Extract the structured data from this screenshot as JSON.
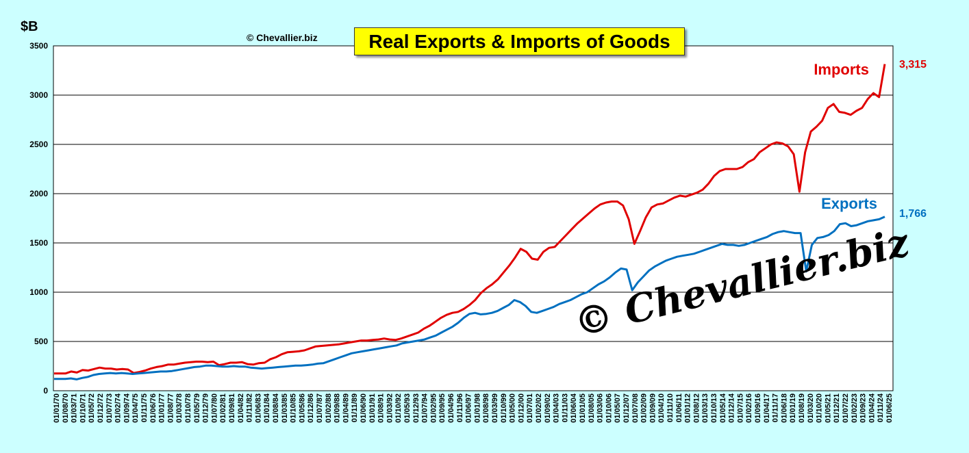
{
  "chart_data": {
    "type": "line",
    "title": "Real Exports & Imports of Goods",
    "copyright": "© Chevallier.biz",
    "watermark": "© Chevallier.biz",
    "ylabel": "$B",
    "ylim": [
      0,
      3500
    ],
    "yticks": [
      0,
      500,
      1000,
      1500,
      2000,
      2500,
      3000,
      3500
    ],
    "grid": true,
    "xtick_labels": [
      "01/01/70",
      "01/08/70",
      "01/03/71",
      "01/10/71",
      "01/05/72",
      "01/12/72",
      "01/07/73",
      "01/02/74",
      "01/09/74",
      "01/04/75",
      "01/11/75",
      "01/06/76",
      "01/01/77",
      "01/08/77",
      "01/03/78",
      "01/10/78",
      "01/05/79",
      "01/12/79",
      "01/07/80",
      "01/02/81",
      "01/09/81",
      "01/04/82",
      "01/11/82",
      "01/06/83",
      "01/01/84",
      "01/08/84",
      "01/03/85",
      "01/10/85",
      "01/05/86",
      "01/12/86",
      "01/07/87",
      "01/02/88",
      "01/09/88",
      "01/04/89",
      "01/11/89",
      "01/06/90",
      "01/01/91",
      "01/08/91",
      "01/03/92",
      "01/10/92",
      "01/05/93",
      "01/12/93",
      "01/07/94",
      "01/02/95",
      "01/09/95",
      "01/04/96",
      "01/11/96",
      "01/06/97",
      "01/01/98",
      "01/08/98",
      "01/03/99",
      "01/10/99",
      "01/05/00",
      "01/12/00",
      "01/07/01",
      "01/02/02",
      "01/09/02",
      "01/04/03",
      "01/11/03",
      "01/06/04",
      "01/01/05",
      "01/08/05",
      "01/03/06",
      "01/10/06",
      "01/05/07",
      "01/12/07",
      "01/07/08",
      "01/02/09",
      "01/09/09",
      "01/04/10",
      "01/11/10",
      "01/06/11",
      "01/01/12",
      "01/08/12",
      "01/03/13",
      "01/10/13",
      "01/05/14",
      "01/12/14",
      "01/07/15",
      "01/02/16",
      "01/09/16",
      "01/04/17",
      "01/11/17",
      "01/06/18",
      "01/01/19",
      "01/08/19",
      "01/03/20",
      "01/10/20",
      "01/05/21",
      "01/12/21",
      "01/07/22",
      "01/02/23",
      "01/09/23",
      "01/04/24",
      "01/11/24",
      "01/06/25"
    ],
    "series": [
      {
        "name": "Imports",
        "color": "#e00000",
        "end_label": "3,315",
        "values": [
          175,
          175,
          175,
          195,
          185,
          210,
          205,
          220,
          235,
          225,
          225,
          215,
          220,
          215,
          180,
          190,
          205,
          225,
          240,
          250,
          265,
          265,
          275,
          285,
          290,
          295,
          295,
          290,
          295,
          260,
          270,
          285,
          285,
          290,
          270,
          265,
          280,
          285,
          320,
          340,
          370,
          390,
          395,
          400,
          410,
          430,
          450,
          455,
          460,
          465,
          470,
          480,
          490,
          500,
          510,
          510,
          515,
          520,
          530,
          520,
          515,
          530,
          550,
          570,
          590,
          630,
          660,
          700,
          740,
          770,
          790,
          800,
          830,
          870,
          920,
          990,
          1040,
          1080,
          1130,
          1200,
          1270,
          1350,
          1440,
          1410,
          1340,
          1330,
          1410,
          1450,
          1460,
          1520,
          1580,
          1640,
          1700,
          1750,
          1800,
          1850,
          1890,
          1910,
          1920,
          1920,
          1880,
          1740,
          1490,
          1620,
          1760,
          1860,
          1890,
          1900,
          1930,
          1960,
          1980,
          1970,
          1990,
          2010,
          2040,
          2100,
          2180,
          2230,
          2250,
          2250,
          2250,
          2270,
          2320,
          2350,
          2420,
          2460,
          2500,
          2520,
          2510,
          2480,
          2400,
          2020,
          2420,
          2630,
          2680,
          2740,
          2870,
          2910,
          2830,
          2820,
          2800,
          2840,
          2870,
          2960,
          3020,
          2980,
          3315
        ]
      },
      {
        "name": "Exports",
        "color": "#0070c0",
        "end_label": "1,766",
        "values": [
          120,
          120,
          120,
          125,
          115,
          130,
          140,
          160,
          170,
          175,
          180,
          175,
          180,
          175,
          170,
          175,
          180,
          185,
          190,
          195,
          195,
          200,
          210,
          220,
          230,
          240,
          245,
          255,
          255,
          250,
          245,
          245,
          250,
          245,
          245,
          235,
          230,
          225,
          230,
          235,
          240,
          245,
          250,
          255,
          255,
          260,
          265,
          275,
          280,
          300,
          320,
          340,
          360,
          380,
          390,
          400,
          410,
          420,
          430,
          440,
          450,
          460,
          480,
          490,
          500,
          510,
          520,
          540,
          560,
          590,
          620,
          650,
          690,
          740,
          780,
          790,
          775,
          780,
          790,
          810,
          840,
          870,
          920,
          900,
          860,
          800,
          790,
          810,
          830,
          850,
          880,
          900,
          920,
          950,
          980,
          1000,
          1040,
          1080,
          1110,
          1150,
          1200,
          1240,
          1230,
          1020,
          1100,
          1160,
          1220,
          1260,
          1290,
          1320,
          1340,
          1360,
          1370,
          1380,
          1390,
          1410,
          1430,
          1450,
          1470,
          1490,
          1480,
          1480,
          1470,
          1480,
          1500,
          1520,
          1540,
          1560,
          1590,
          1610,
          1620,
          1610,
          1600,
          1600,
          1210,
          1480,
          1550,
          1560,
          1580,
          1620,
          1690,
          1700,
          1670,
          1680,
          1700,
          1720,
          1730,
          1740,
          1766
        ]
      }
    ]
  }
}
